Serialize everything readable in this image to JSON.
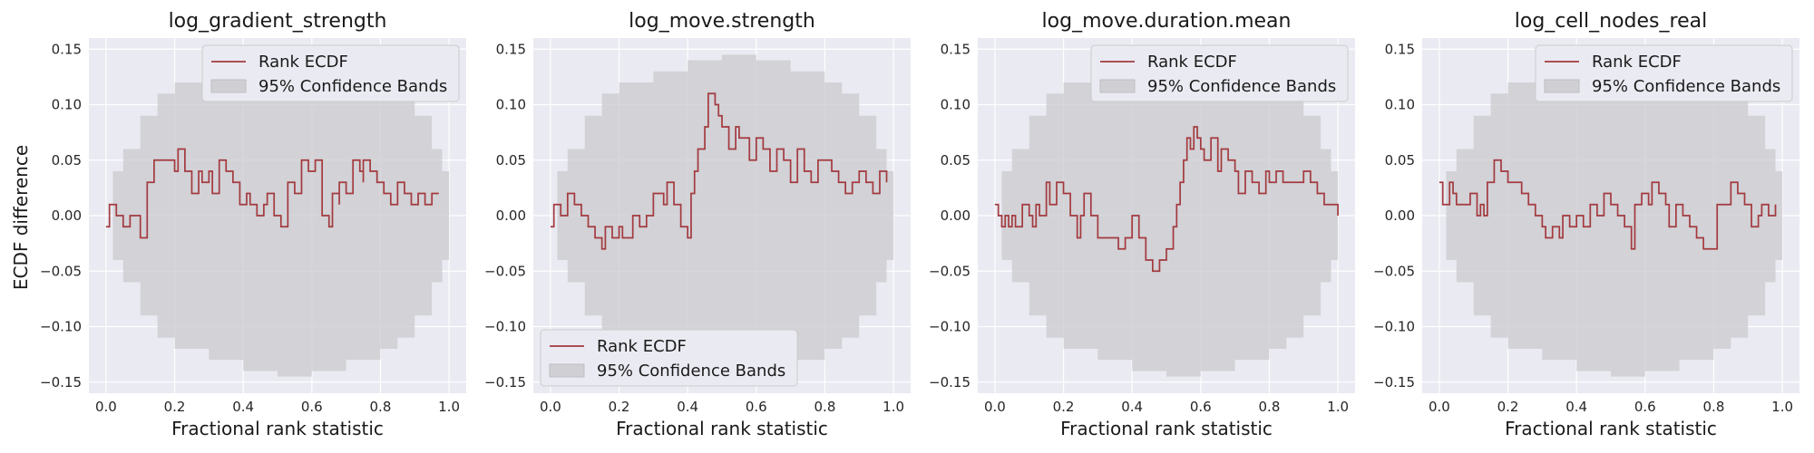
{
  "colors": {
    "plot_bg": "#eaeaf2",
    "grid": "#ffffff",
    "band": "#c8c8cc",
    "line": "#a33a3e",
    "legend_bg": "#eaeaf2",
    "legend_border": "#cccccc"
  },
  "ylabel": "ECDF difference",
  "chart_data": [
    {
      "type": "line",
      "title": "log_gradient_strength",
      "xlabel": "Fractional rank statistic",
      "xlim": [
        -0.05,
        1.05
      ],
      "ylim": [
        -0.16,
        0.16
      ],
      "x_ticks": [
        "0.0",
        "0.2",
        "0.4",
        "0.6",
        "0.8",
        "1.0"
      ],
      "y_ticks": [
        "0.15",
        "0.10",
        "0.05",
        "0.00",
        "−0.05",
        "−0.10",
        "−0.15"
      ],
      "grid": true,
      "legend_position": "upper right",
      "legend": [
        "Rank ECDF",
        "95% Confidence Bands"
      ],
      "band": {
        "x": [
          0.0,
          0.02,
          0.05,
          0.1,
          0.15,
          0.2,
          0.3,
          0.4,
          0.5,
          0.6,
          0.7,
          0.8,
          0.85,
          0.9,
          0.95,
          0.98,
          1.0
        ],
        "upper": [
          0.0,
          0.04,
          0.06,
          0.09,
          0.11,
          0.12,
          0.13,
          0.14,
          0.145,
          0.14,
          0.13,
          0.12,
          0.11,
          0.09,
          0.06,
          0.04,
          0.0
        ],
        "lower": [
          0.0,
          -0.04,
          -0.06,
          -0.09,
          -0.11,
          -0.12,
          -0.13,
          -0.14,
          -0.145,
          -0.14,
          -0.13,
          -0.12,
          -0.11,
          -0.09,
          -0.06,
          -0.04,
          0.0
        ]
      },
      "series": [
        {
          "name": "Rank ECDF",
          "x": [
            0.0,
            0.01,
            0.03,
            0.05,
            0.07,
            0.1,
            0.12,
            0.12,
            0.14,
            0.14,
            0.16,
            0.18,
            0.2,
            0.21,
            0.23,
            0.25,
            0.27,
            0.28,
            0.3,
            0.31,
            0.33,
            0.35,
            0.36,
            0.37,
            0.39,
            0.41,
            0.42,
            0.44,
            0.46,
            0.47,
            0.49,
            0.51,
            0.53,
            0.53,
            0.55,
            0.57,
            0.57,
            0.59,
            0.61,
            0.63,
            0.65,
            0.66,
            0.68,
            0.68,
            0.7,
            0.72,
            0.74,
            0.75,
            0.75,
            0.77,
            0.79,
            0.81,
            0.83,
            0.85,
            0.87,
            0.89,
            0.91,
            0.93,
            0.93,
            0.95,
            0.97
          ],
          "y": [
            -0.01,
            0.01,
            0.0,
            -0.01,
            0.0,
            -0.02,
            0.0,
            0.03,
            0.03,
            0.05,
            0.05,
            0.05,
            0.04,
            0.06,
            0.04,
            0.02,
            0.04,
            0.03,
            0.04,
            0.02,
            0.05,
            0.04,
            0.04,
            0.03,
            0.01,
            0.02,
            0.01,
            0.0,
            0.01,
            0.02,
            0.0,
            -0.01,
            0.02,
            0.03,
            0.02,
            0.04,
            0.05,
            0.04,
            0.05,
            0.0,
            -0.01,
            0.02,
            0.01,
            0.03,
            0.02,
            0.05,
            0.04,
            0.03,
            0.05,
            0.04,
            0.03,
            0.02,
            0.01,
            0.03,
            0.02,
            0.01,
            0.02,
            0.02,
            0.01,
            0.02,
            0.02
          ]
        }
      ]
    },
    {
      "type": "line",
      "title": "log_move.strength",
      "xlabel": "Fractional rank statistic",
      "xlim": [
        -0.05,
        1.05
      ],
      "ylim": [
        -0.16,
        0.16
      ],
      "x_ticks": [
        "0.0",
        "0.2",
        "0.4",
        "0.6",
        "0.8",
        "1.0"
      ],
      "y_ticks": [
        "0.15",
        "0.10",
        "0.05",
        "0.00",
        "−0.05",
        "−0.10",
        "−0.15"
      ],
      "grid": true,
      "legend_position": "lower left",
      "legend": [
        "Rank ECDF",
        "95% Confidence Bands"
      ],
      "band": {
        "x": [
          0.0,
          0.02,
          0.05,
          0.1,
          0.15,
          0.2,
          0.3,
          0.4,
          0.5,
          0.6,
          0.7,
          0.8,
          0.85,
          0.9,
          0.95,
          0.98,
          1.0
        ],
        "upper": [
          0.0,
          0.04,
          0.06,
          0.09,
          0.11,
          0.12,
          0.13,
          0.14,
          0.145,
          0.14,
          0.13,
          0.12,
          0.11,
          0.09,
          0.06,
          0.04,
          0.0
        ],
        "lower": [
          0.0,
          -0.04,
          -0.06,
          -0.09,
          -0.11,
          -0.12,
          -0.13,
          -0.14,
          -0.145,
          -0.14,
          -0.13,
          -0.12,
          -0.11,
          -0.09,
          -0.06,
          -0.04,
          0.0
        ]
      },
      "series": [
        {
          "name": "Rank ECDF",
          "x": [
            0.0,
            0.01,
            0.03,
            0.05,
            0.07,
            0.09,
            0.11,
            0.13,
            0.15,
            0.16,
            0.18,
            0.2,
            0.21,
            0.23,
            0.24,
            0.26,
            0.28,
            0.3,
            0.31,
            0.33,
            0.34,
            0.36,
            0.38,
            0.4,
            0.41,
            0.42,
            0.43,
            0.45,
            0.46,
            0.48,
            0.49,
            0.5,
            0.52,
            0.54,
            0.55,
            0.57,
            0.58,
            0.6,
            0.62,
            0.64,
            0.66,
            0.68,
            0.7,
            0.72,
            0.74,
            0.76,
            0.78,
            0.8,
            0.82,
            0.84,
            0.86,
            0.88,
            0.9,
            0.92,
            0.94,
            0.96,
            0.98
          ],
          "y": [
            -0.01,
            0.01,
            0.0,
            0.02,
            0.01,
            0.0,
            -0.01,
            -0.02,
            -0.03,
            -0.01,
            -0.02,
            -0.01,
            -0.02,
            -0.02,
            0.0,
            -0.01,
            0.0,
            0.02,
            0.02,
            0.01,
            0.03,
            0.01,
            -0.01,
            -0.02,
            0.02,
            0.04,
            0.06,
            0.08,
            0.11,
            0.1,
            0.09,
            0.08,
            0.06,
            0.08,
            0.07,
            0.07,
            0.05,
            0.07,
            0.06,
            0.04,
            0.06,
            0.05,
            0.03,
            0.06,
            0.04,
            0.03,
            0.05,
            0.05,
            0.04,
            0.03,
            0.02,
            0.03,
            0.04,
            0.03,
            0.02,
            0.04,
            0.03
          ]
        }
      ]
    },
    {
      "type": "line",
      "title": "log_move.duration.mean",
      "xlabel": "Fractional rank statistic",
      "xlim": [
        -0.05,
        1.05
      ],
      "ylim": [
        -0.16,
        0.16
      ],
      "x_ticks": [
        "0.0",
        "0.2",
        "0.4",
        "0.6",
        "0.8",
        "1.0"
      ],
      "y_ticks": [
        "0.15",
        "0.10",
        "0.05",
        "0.00",
        "−0.05",
        "−0.10",
        "−0.15"
      ],
      "grid": true,
      "legend_position": "upper right",
      "legend": [
        "Rank ECDF",
        "95% Confidence Bands"
      ],
      "band": {
        "x": [
          0.0,
          0.02,
          0.05,
          0.1,
          0.15,
          0.2,
          0.3,
          0.4,
          0.5,
          0.6,
          0.7,
          0.8,
          0.85,
          0.9,
          0.95,
          0.98,
          1.0
        ],
        "upper": [
          0.0,
          0.04,
          0.06,
          0.09,
          0.11,
          0.12,
          0.13,
          0.14,
          0.145,
          0.14,
          0.13,
          0.12,
          0.11,
          0.09,
          0.06,
          0.04,
          0.0
        ],
        "lower": [
          0.0,
          -0.04,
          -0.06,
          -0.09,
          -0.11,
          -0.12,
          -0.13,
          -0.14,
          -0.145,
          -0.14,
          -0.13,
          -0.12,
          -0.11,
          -0.09,
          -0.06,
          -0.04,
          0.0
        ]
      },
      "series": [
        {
          "name": "Rank ECDF",
          "x": [
            0.0,
            0.01,
            0.02,
            0.03,
            0.04,
            0.05,
            0.06,
            0.07,
            0.08,
            0.1,
            0.11,
            0.12,
            0.13,
            0.15,
            0.16,
            0.18,
            0.2,
            0.22,
            0.24,
            0.25,
            0.26,
            0.28,
            0.3,
            0.32,
            0.34,
            0.36,
            0.38,
            0.4,
            0.42,
            0.44,
            0.46,
            0.48,
            0.5,
            0.52,
            0.53,
            0.54,
            0.55,
            0.56,
            0.57,
            0.58,
            0.59,
            0.6,
            0.61,
            0.63,
            0.65,
            0.66,
            0.68,
            0.7,
            0.71,
            0.73,
            0.75,
            0.77,
            0.79,
            0.8,
            0.82,
            0.84,
            0.86,
            0.88,
            0.9,
            0.92,
            0.94,
            0.96,
            1.0
          ],
          "y": [
            0.01,
            0.0,
            -0.01,
            0.0,
            -0.01,
            0.0,
            -0.01,
            -0.01,
            0.01,
            0.0,
            -0.01,
            0.01,
            0.0,
            0.03,
            0.01,
            0.03,
            0.02,
            0.0,
            -0.02,
            0.0,
            0.02,
            0.0,
            -0.02,
            -0.02,
            -0.02,
            -0.03,
            -0.02,
            0.0,
            -0.02,
            -0.04,
            -0.05,
            -0.04,
            -0.03,
            -0.01,
            0.01,
            0.03,
            0.05,
            0.07,
            0.06,
            0.08,
            0.07,
            0.06,
            0.05,
            0.07,
            0.04,
            0.06,
            0.05,
            0.04,
            0.02,
            0.04,
            0.03,
            0.02,
            0.04,
            0.03,
            0.04,
            0.03,
            0.03,
            0.03,
            0.04,
            0.03,
            0.02,
            0.01,
            0.0
          ]
        }
      ]
    },
    {
      "type": "line",
      "title": "log_cell_nodes_real",
      "xlabel": "Fractional rank statistic",
      "xlim": [
        -0.05,
        1.05
      ],
      "ylim": [
        -0.16,
        0.16
      ],
      "x_ticks": [
        "0.0",
        "0.2",
        "0.4",
        "0.6",
        "0.8",
        "1.0"
      ],
      "y_ticks": [
        "0.15",
        "0.10",
        "0.05",
        "0.00",
        "−0.05",
        "−0.10",
        "−0.15"
      ],
      "grid": true,
      "legend_position": "upper right",
      "legend": [
        "Rank ECDF",
        "95% Confidence Bands"
      ],
      "band": {
        "x": [
          0.0,
          0.02,
          0.05,
          0.1,
          0.15,
          0.2,
          0.3,
          0.4,
          0.5,
          0.6,
          0.7,
          0.8,
          0.85,
          0.9,
          0.95,
          0.98,
          1.0
        ],
        "upper": [
          0.0,
          0.04,
          0.06,
          0.09,
          0.11,
          0.12,
          0.13,
          0.14,
          0.145,
          0.14,
          0.13,
          0.12,
          0.11,
          0.09,
          0.06,
          0.04,
          0.0
        ],
        "lower": [
          0.0,
          -0.04,
          -0.06,
          -0.09,
          -0.11,
          -0.12,
          -0.13,
          -0.14,
          -0.145,
          -0.14,
          -0.13,
          -0.12,
          -0.11,
          -0.09,
          -0.06,
          -0.04,
          0.0
        ]
      },
      "series": [
        {
          "name": "Rank ECDF",
          "x": [
            0.0,
            0.01,
            0.03,
            0.04,
            0.05,
            0.07,
            0.09,
            0.11,
            0.12,
            0.13,
            0.14,
            0.16,
            0.18,
            0.2,
            0.22,
            0.24,
            0.26,
            0.28,
            0.3,
            0.31,
            0.33,
            0.35,
            0.36,
            0.38,
            0.4,
            0.42,
            0.44,
            0.46,
            0.48,
            0.5,
            0.52,
            0.54,
            0.56,
            0.57,
            0.59,
            0.61,
            0.62,
            0.64,
            0.66,
            0.67,
            0.69,
            0.71,
            0.73,
            0.75,
            0.77,
            0.79,
            0.8,
            0.81,
            0.83,
            0.85,
            0.87,
            0.89,
            0.91,
            0.93,
            0.94,
            0.96,
            0.98
          ],
          "y": [
            0.03,
            0.01,
            0.03,
            0.02,
            0.01,
            0.01,
            0.02,
            0.0,
            0.01,
            0.0,
            0.03,
            0.05,
            0.04,
            0.03,
            0.03,
            0.02,
            0.01,
            0.0,
            -0.01,
            -0.02,
            -0.01,
            -0.02,
            0.0,
            -0.01,
            0.0,
            -0.01,
            0.01,
            0.0,
            0.02,
            0.01,
            0.0,
            -0.01,
            -0.03,
            0.01,
            0.02,
            0.01,
            0.03,
            0.02,
            0.01,
            -0.01,
            0.01,
            0.0,
            -0.01,
            -0.02,
            -0.03,
            -0.03,
            -0.03,
            0.01,
            0.01,
            0.03,
            0.02,
            0.01,
            -0.01,
            0.0,
            0.01,
            0.0,
            0.01
          ]
        }
      ]
    }
  ]
}
